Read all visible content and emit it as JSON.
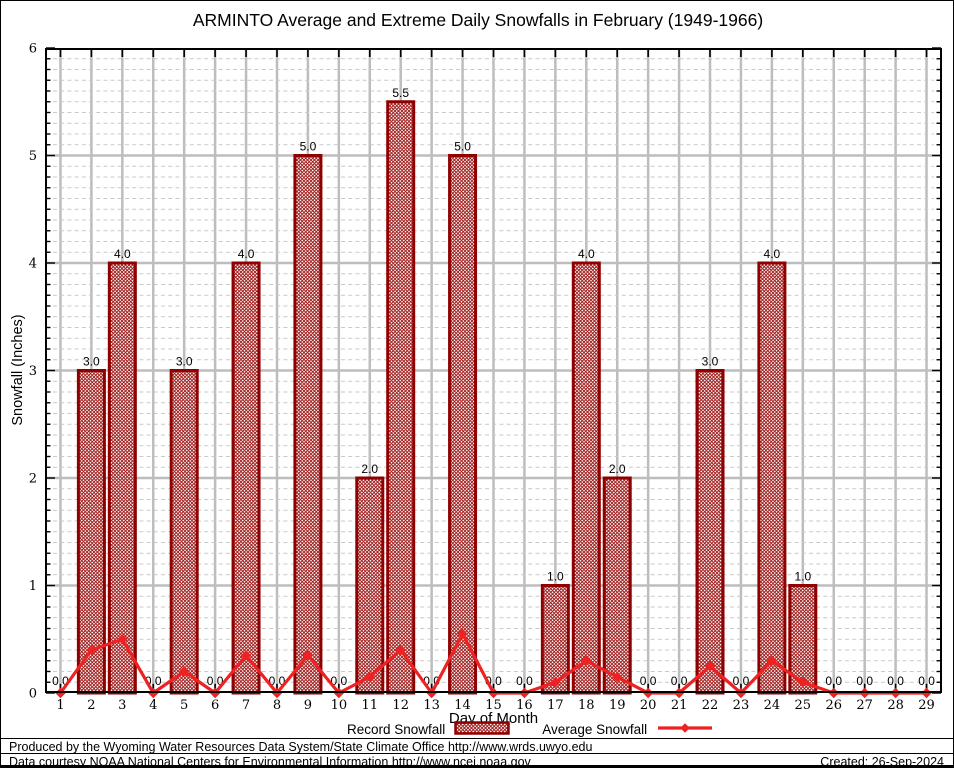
{
  "title": "ARMINTO Average and Extreme Daily Snowfalls in February (1949-1966)",
  "chart_data": {
    "type": "bar",
    "categories": [
      1,
      2,
      3,
      4,
      5,
      6,
      7,
      8,
      9,
      10,
      11,
      12,
      13,
      14,
      15,
      16,
      17,
      18,
      19,
      20,
      21,
      22,
      23,
      24,
      25,
      26,
      27,
      28,
      29
    ],
    "series": [
      {
        "name": "Record Snowfall",
        "type": "bar",
        "values": [
          0,
          3,
          4,
          0,
          3,
          0,
          4,
          0,
          5,
          0,
          2,
          5.5,
          0,
          5,
          0,
          0,
          1,
          4,
          2,
          0,
          0,
          3,
          0,
          4,
          1,
          0,
          0,
          0,
          0
        ],
        "labels": [
          "0.0",
          "3.0",
          "4.0",
          "0.0",
          "3.0",
          "0.0",
          "4.0",
          "0.0",
          "5.0",
          "0.0",
          "2.0",
          "5.5",
          "0.0",
          "5.0",
          "0.0",
          "0.0",
          "1.0",
          "4.0",
          "2.0",
          "0.0",
          "0.0",
          "3.0",
          "0.0",
          "4.0",
          "1.0",
          "0.0",
          "0.0",
          "0.0",
          "0.0"
        ]
      },
      {
        "name": "Average Snowfall",
        "type": "line",
        "values": [
          0,
          0.4,
          0.5,
          0,
          0.2,
          0,
          0.35,
          0,
          0.35,
          0,
          0.15,
          0.4,
          0,
          0.55,
          0,
          0,
          0.1,
          0.3,
          0.15,
          0,
          0,
          0.25,
          0,
          0.3,
          0.1,
          0,
          0,
          0,
          0
        ]
      }
    ],
    "xlabel": "Day of Month",
    "ylabel": "Snowfall (Inches)",
    "ylim": [
      0,
      6
    ],
    "yticks": [
      0,
      1,
      2,
      3,
      4,
      5,
      6
    ],
    "y_minor_step": 0.1,
    "grid": "major-solid, minor-dashed, vertical per day"
  },
  "legend": {
    "record_label": "Record Snowfall",
    "average_label": "Average Snowfall"
  },
  "footer": {
    "line1": "Produced by the Wyoming Water Resources Data System/State Climate Office http://www.wrds.uwyo.edu",
    "line2": "Data courtesy NOAA National Centers for Environmental Information http://www.ncei.noaa.gov",
    "created": "Created: 26-Sep-2024"
  },
  "colors": {
    "bar_border": "#8f0000",
    "bar_hatch": "#a12424",
    "line": "#ee2222",
    "grid_major": "#bdbdbd",
    "grid_minor": "#c9c9c9",
    "axis": "#000000",
    "text": "#000000"
  }
}
